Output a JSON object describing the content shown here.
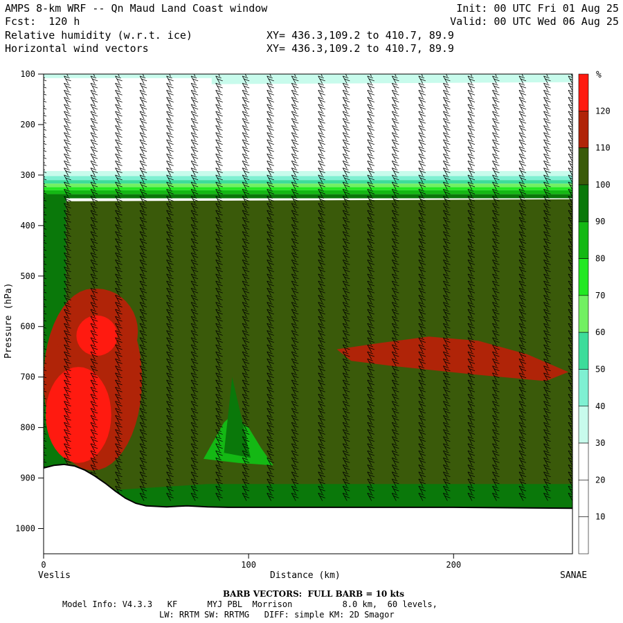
{
  "header": {
    "line1_left": "AMPS 8-km WRF -- Qn Maud Land Coast window",
    "line2_left": "Fcst:  120 h",
    "line3_left": "Relative humidity (w.r.t. ice)",
    "line4_left": "Horizontal wind vectors",
    "line1_right": "Init: 00 UTC Fri 01 Aug 25",
    "line2_right": "Valid: 00 UTC Wed 06 Aug 25",
    "line3_right": "XY= 436.3,109.2 to 410.7, 89.9",
    "line4_right": "XY= 436.3,109.2 to 410.7, 89.9"
  },
  "chart_data": {
    "type": "heatmap",
    "title": "Relative humidity (w.r.t. ice)",
    "xlabel": "Distance (km)",
    "ylabel": "Pressure (hPa)",
    "x_ticks": [
      0,
      100,
      200
    ],
    "y_ticks": [
      100,
      200,
      300,
      400,
      500,
      600,
      700,
      800,
      900,
      1000
    ],
    "xlim": [
      0,
      258
    ],
    "ylim": [
      1050,
      100
    ],
    "y_axis_inverted": true,
    "x_end_labels": {
      "left": "Veslis",
      "right": "SANAE"
    },
    "colorbar": {
      "unit": "%",
      "levels": [
        10,
        20,
        30,
        40,
        50,
        60,
        70,
        80,
        90,
        100,
        110,
        120
      ],
      "colors": [
        "#ffffff",
        "#ffffff",
        "#ffffff",
        "#c8fbec",
        "#7ff0d2",
        "#3ddc9a",
        "#72f062",
        "#22e822",
        "#14b814",
        "#0a780a",
        "#3a5a0a",
        "#b02408",
        "#ff1a10"
      ]
    },
    "fields": [
      {
        "name": "moist layer (100-110%)",
        "color": "#3a5a0a",
        "approx_extent": {
          "x": [
            0,
            258
          ],
          "p": [
            330,
            935
          ]
        }
      },
      {
        "name": "dry upper layer (<30%)",
        "color": "#ffffff",
        "approx_extent": {
          "x": [
            0,
            258
          ],
          "p": [
            100,
            300
          ]
        }
      },
      {
        "name": "near-surface band (90-100%)",
        "color": "#0a780a",
        "approx_extent": {
          "x": [
            30,
            258
          ],
          "p": [
            910,
            955
          ]
        }
      },
      {
        "name": "low-level pocket (80-90%)",
        "color": "#14b814",
        "approx_extent": {
          "x": [
            78,
            112
          ],
          "p": [
            780,
            880
          ]
        }
      },
      {
        "name": "supersaturation (110-120%) west",
        "color": "#b02408",
        "approx_extent": {
          "x": [
            0,
            48
          ],
          "p": [
            530,
            880
          ]
        }
      },
      {
        "name": "supersaturation (>120%) west",
        "color": "#ff1a10",
        "approx_extent": {
          "x": [
            0,
            32
          ],
          "p": [
            580,
            870
          ]
        }
      },
      {
        "name": "supersaturation (110-120%) east",
        "color": "#b02408",
        "approx_extent": {
          "x": [
            143,
            256
          ],
          "p": [
            620,
            710
          ]
        }
      }
    ],
    "terrain": {
      "x_km": [
        0,
        5,
        10,
        15,
        20,
        25,
        30,
        35,
        40,
        45,
        50,
        60,
        70,
        80,
        90,
        100,
        150,
        200,
        258
      ],
      "p_hPa": [
        880,
        875,
        873,
        876,
        884,
        896,
        910,
        926,
        940,
        950,
        955,
        957,
        955,
        957,
        958,
        958,
        958,
        958,
        960
      ]
    },
    "wind_barbs": {
      "description": "Horizontal wind barbs along the section, full barb = 10 kts",
      "column_x_km": [
        0,
        12,
        25,
        37,
        49,
        62,
        74,
        86,
        99,
        111,
        123,
        136,
        148,
        160,
        172,
        185,
        197,
        209,
        221,
        234,
        246,
        258
      ]
    }
  },
  "labels": {
    "colorbar_unit": "%",
    "barb_title": "BARB VECTORS:  FULL BARB = 10 kts",
    "footer_1": "Model Info: V4.3.3   KF      MYJ PBL  Morrison          8.0 km,  60 levels,",
    "footer_2": "LW: RRTM SW: RRTMG   DIFF: simple KM: 2D Smagor"
  }
}
